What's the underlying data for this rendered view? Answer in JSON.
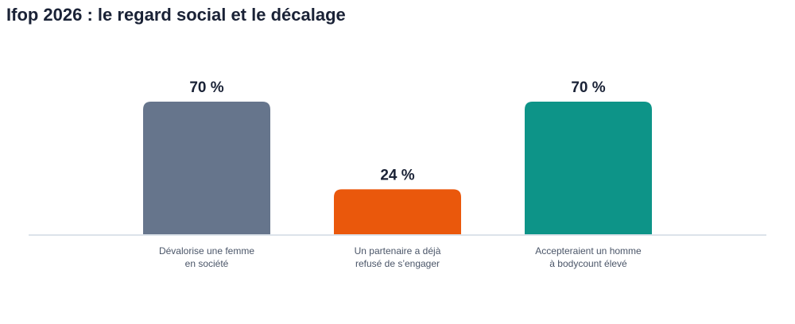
{
  "title": "Ifop 2026 : le regard social et le décalage",
  "chart_data": {
    "type": "bar",
    "title": "Ifop 2026 : le regard social et le décalage",
    "categories": [
      [
        "Dévalorise une femme",
        "en société"
      ],
      [
        "Un partenaire a déjà",
        "refusé de s’engager"
      ],
      [
        "Accepteraient un homme",
        "à bodycount élevé"
      ]
    ],
    "values": [
      70,
      24,
      70
    ],
    "value_labels": [
      "70 %",
      "24 %",
      "70 %"
    ],
    "unit": "%",
    "colors": [
      "#66758c",
      "#ea580c",
      "#0d9488"
    ],
    "baseline_color": "#dce3ea",
    "ylim": [
      0,
      100
    ],
    "grid": false,
    "legend": "none"
  }
}
